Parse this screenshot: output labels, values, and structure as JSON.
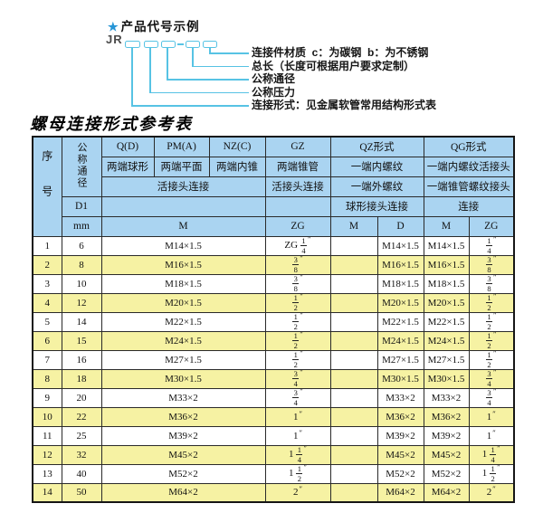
{
  "diagram": {
    "star": "★",
    "heading": "产品代号示例",
    "code_prefix": "JR",
    "labels": [
      "连接件材质  c：为碳钢  b：为不锈钢",
      "总长（长度可根据用户要求定制）",
      "公称通径",
      "公称压力",
      "连接形式：见金属软管常用结构形式表"
    ],
    "line_color": "#57c3e4",
    "star_color": "#2695d6"
  },
  "table": {
    "title": "螺母连接形式参考表",
    "colors": {
      "header_bg": "#aad4f1",
      "row_alt_bg": "#f6f2a3",
      "row_bg": "#ffffff",
      "border": "#2a2a2a"
    },
    "header": {
      "seq": "序号",
      "dn": "公称通径",
      "d1": "D1",
      "mm": "mm",
      "q_code": "Q(D)",
      "q_type": "两端球形",
      "pm_code": "PM(A)",
      "pm_type": "两端平面",
      "nz_code": "NZ(C)",
      "nz_type": "两端内锥",
      "gz_code": "GZ",
      "gz_type": "两端锥管",
      "qpmnz_conn": "活接头连接",
      "gz_conn": "活接头连接",
      "qz_code": "QZ形式",
      "qz_type": "一端内螺纹",
      "qz_row3": "一端外螺纹",
      "qz_row4": "球形接头连接",
      "qg_code": "QG形式",
      "qg_type": "一端内螺纹活接头",
      "qg_row3": "一端锥管螺纹接头",
      "qg_row4": "连接",
      "m_wide": "M",
      "zg_gz": "ZG",
      "qz_m": "M",
      "qz_d": "D",
      "qg_m": "M",
      "qg_zg": "ZG"
    },
    "rows": [
      [
        "1",
        "6",
        "M14×1.5",
        "ZG 1/4\"",
        "",
        "M14×1.5",
        "M14×1.5",
        "1/4\""
      ],
      [
        "2",
        "8",
        "M16×1.5",
        "3/8\"",
        "",
        "M16×1.5",
        "M16×1.5",
        "3/8\""
      ],
      [
        "3",
        "10",
        "M18×1.5",
        "3/8\"",
        "",
        "M18×1.5",
        "M18×1.5",
        "3/8\""
      ],
      [
        "4",
        "12",
        "M20×1.5",
        "1/2\"",
        "",
        "M20×1.5",
        "M20×1.5",
        "1/2\""
      ],
      [
        "5",
        "14",
        "M22×1.5",
        "1/2\"",
        "",
        "M22×1.5",
        "M22×1.5",
        "1/2\""
      ],
      [
        "6",
        "15",
        "M24×1.5",
        "1/2\"",
        "",
        "M24×1.5",
        "M24×1.5",
        "1/2\""
      ],
      [
        "7",
        "16",
        "M27×1.5",
        "1/2\"",
        "",
        "M27×1.5",
        "M27×1.5",
        "1/2\""
      ],
      [
        "8",
        "18",
        "M30×1.5",
        "3/4\"",
        "",
        "M30×1.5",
        "M30×1.5",
        "3/4\""
      ],
      [
        "9",
        "20",
        "M33×2",
        "3/4\"",
        "",
        "M33×2",
        "M33×2",
        "3/4\""
      ],
      [
        "10",
        "22",
        "M36×2",
        "1\"",
        "",
        "M36×2",
        "M36×2",
        "1\""
      ],
      [
        "11",
        "25",
        "M39×2",
        "1\"",
        "",
        "M39×2",
        "M39×2",
        "1\""
      ],
      [
        "12",
        "32",
        "M45×2",
        "1 1/4\"",
        "",
        "M45×2",
        "M45×2",
        "1 1/4\""
      ],
      [
        "13",
        "40",
        "M52×2",
        "1 1/2\"",
        "",
        "M52×2",
        "M52×2",
        "1 1/2\""
      ],
      [
        "14",
        "50",
        "M64×2",
        "2\"",
        "",
        "M64×2",
        "M64×2",
        "2\""
      ]
    ]
  }
}
